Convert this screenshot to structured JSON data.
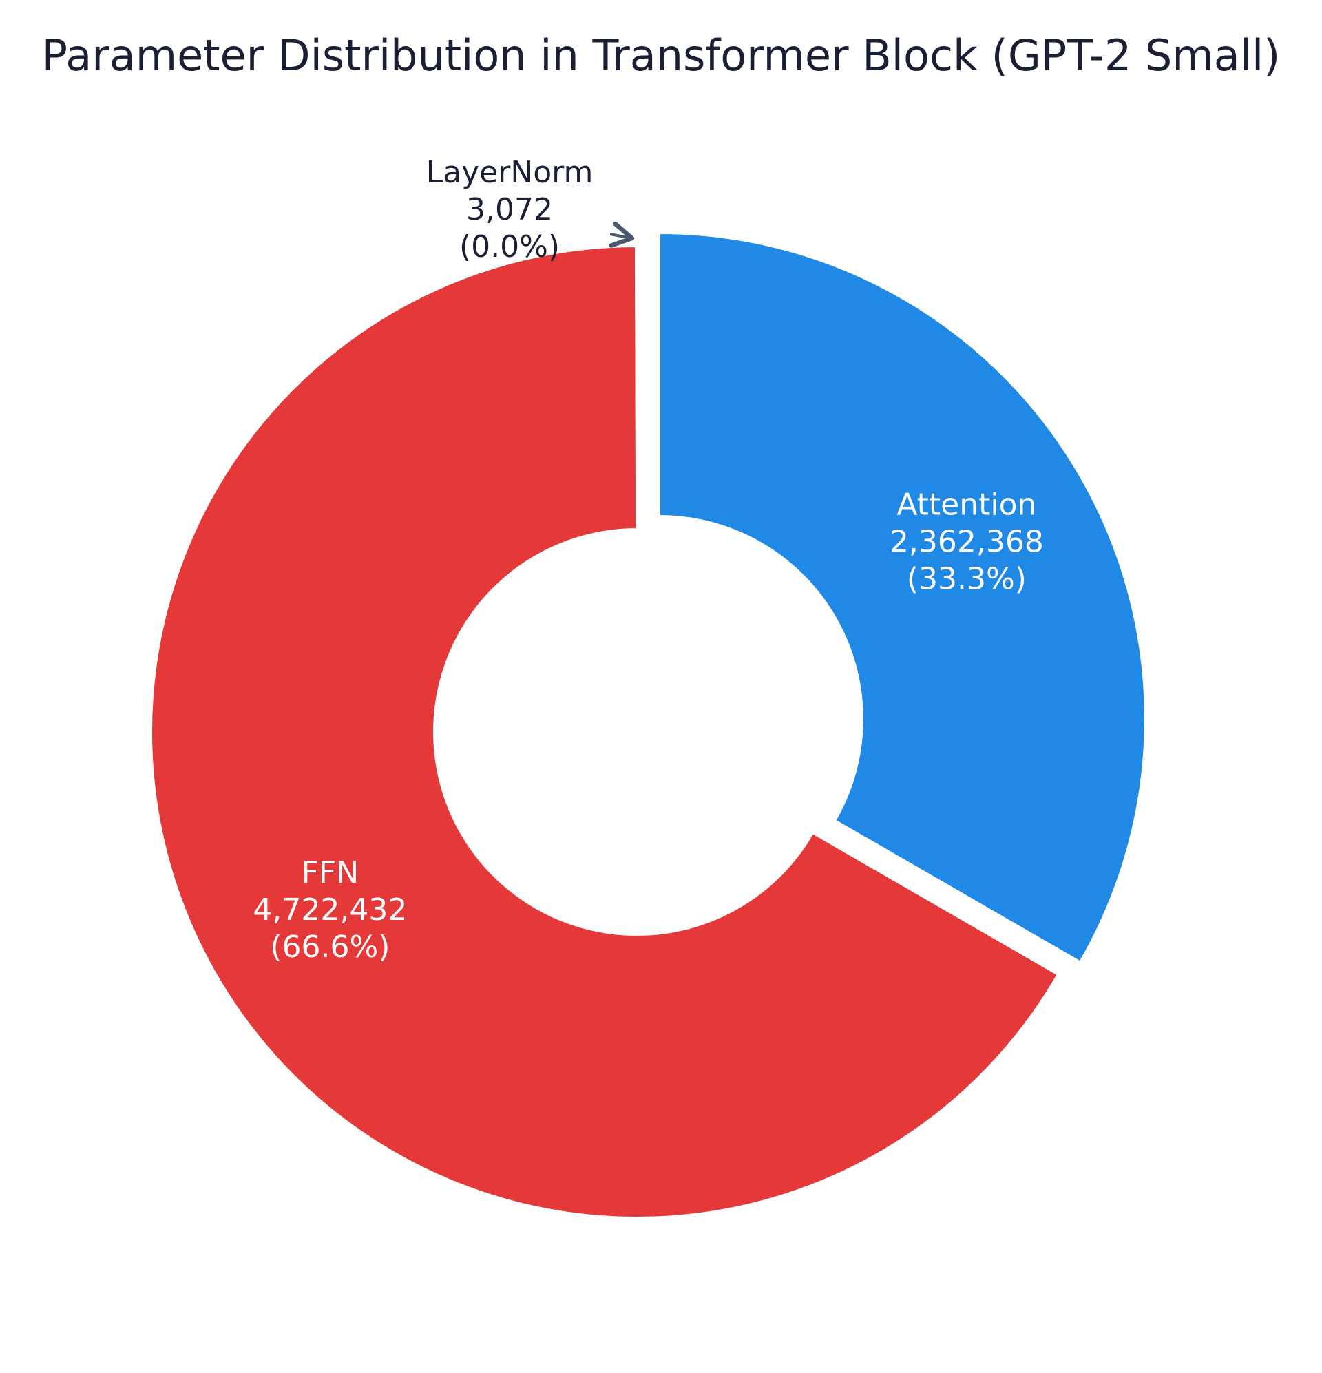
{
  "chart_data": {
    "type": "pie",
    "style": "donut",
    "title": "Parameter Distribution in Transformer Block (GPT-2 Small)",
    "slices": [
      {
        "label": "Attention",
        "value": 2362368,
        "value_text": "2,362,368",
        "percent_text": "(33.3%)",
        "color": "#2088e5",
        "pulled": true,
        "label_placement": "inside"
      },
      {
        "label": "FFN",
        "value": 4722432,
        "value_text": "4,722,432",
        "percent_text": "(66.6%)",
        "color": "#e53838",
        "pulled": false,
        "label_placement": "inside"
      },
      {
        "label": "LayerNorm",
        "value": 3072,
        "value_text": "3,072",
        "percent_text": "(0.0%)",
        "color": "#fde8e8",
        "pulled": false,
        "label_placement": "outside"
      }
    ],
    "start": "12 o'clock",
    "direction": "clockwise",
    "legend": false
  },
  "colors": {
    "background": "#ffffff",
    "title": "#1a1f33",
    "arrow": "#4a5870"
  }
}
